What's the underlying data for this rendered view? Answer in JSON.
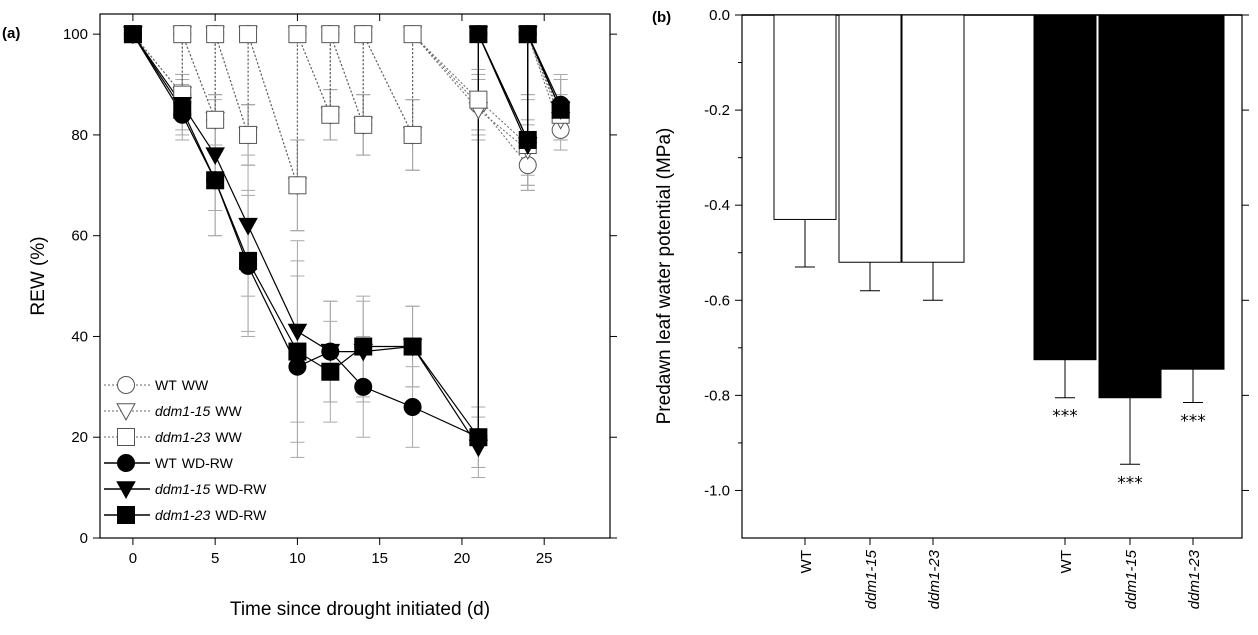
{
  "colors": {
    "open": "#ffffff",
    "filled": "#000000",
    "errorbar": "#a8a8a8",
    "axis": "#000000"
  },
  "chart_data": [
    {
      "panel_label": "(a)",
      "type": "line",
      "xlabel": "Time since drought initiated (d)",
      "ylabel": "REW (%)",
      "xlim": [
        -2,
        29
      ],
      "ylim": [
        0,
        104
      ],
      "xticks": [
        0,
        5,
        10,
        15,
        20,
        25
      ],
      "yticks": [
        0,
        20,
        40,
        60,
        80,
        100
      ],
      "legend_position": "lower-left",
      "series": [
        {
          "genotype": "WT",
          "treatment": "WW",
          "marker": "circle-open",
          "line": "dotted",
          "x": [
            0,
            3,
            5,
            7,
            10,
            12,
            14,
            17,
            21,
            24,
            26
          ],
          "y": [
            100,
            88,
            83,
            80,
            70,
            84,
            82,
            80,
            86,
            74,
            81
          ],
          "err": [
            0,
            4,
            5,
            6,
            9,
            5,
            6,
            7,
            6,
            5,
            4
          ]
        },
        {
          "genotype": "ddm1-15",
          "treatment": "WW",
          "marker": "triangle-open",
          "line": "dotted",
          "x": [
            0,
            3,
            5,
            7,
            10,
            12,
            14,
            17,
            21,
            24,
            26
          ],
          "y": [
            100,
            88,
            83,
            80,
            70,
            84,
            82,
            80,
            85,
            77,
            83
          ],
          "err": [
            0,
            4,
            5,
            6,
            9,
            5,
            6,
            7,
            6,
            5,
            4
          ]
        },
        {
          "genotype": "ddm1-23",
          "treatment": "WW",
          "marker": "square-open",
          "line": "dotted",
          "x": [
            0,
            3,
            5,
            7,
            10,
            12,
            14,
            17,
            21,
            24,
            26
          ],
          "y": [
            100,
            88,
            83,
            80,
            70,
            84,
            82,
            80,
            87,
            78,
            84
          ],
          "err": [
            0,
            4,
            5,
            6,
            9,
            5,
            6,
            7,
            6,
            5,
            4
          ]
        },
        {
          "genotype": "WT",
          "treatment": "WD-RW",
          "marker": "circle-filled",
          "line": "solid",
          "x": [
            0,
            3,
            5,
            7,
            10,
            12,
            14,
            17,
            21,
            24,
            26
          ],
          "y": [
            100,
            84,
            71,
            54,
            34,
            37,
            30,
            26,
            20,
            79,
            86
          ],
          "err": [
            0,
            5,
            11,
            14,
            18,
            10,
            10,
            8,
            6,
            9,
            6
          ]
        },
        {
          "genotype": "ddm1-15",
          "treatment": "WD-RW",
          "marker": "triangle-filled",
          "line": "solid",
          "x": [
            0,
            3,
            5,
            7,
            10,
            12,
            14,
            17,
            21,
            24,
            26
          ],
          "y": [
            100,
            86,
            76,
            62,
            41,
            37,
            37,
            38,
            18,
            78,
            85
          ],
          "err": [
            0,
            5,
            11,
            14,
            18,
            10,
            10,
            8,
            6,
            9,
            6
          ]
        },
        {
          "genotype": "ddm1-23",
          "treatment": "WD-RW",
          "marker": "square-filled",
          "line": "solid",
          "x": [
            0,
            3,
            5,
            7,
            10,
            12,
            14,
            17,
            21,
            24,
            26
          ],
          "y": [
            100,
            85,
            71,
            55,
            37,
            33,
            38,
            38,
            20,
            79,
            85
          ],
          "err": [
            0,
            5,
            11,
            14,
            18,
            10,
            10,
            8,
            6,
            9,
            6
          ]
        }
      ],
      "rewater": [
        {
          "x_from": 3,
          "x_to": 3,
          "to_value": 100,
          "group": "WW"
        },
        {
          "x_from": 5,
          "x_to": 5,
          "to_value": 100,
          "group": "WW"
        },
        {
          "x_from": 7,
          "x_to": 7,
          "to_value": 100,
          "group": "WW"
        },
        {
          "x_from": 10,
          "x_to": 10,
          "to_value": 100,
          "group": "WW"
        },
        {
          "x_from": 12,
          "x_to": 12,
          "to_value": 100,
          "group": "WW"
        },
        {
          "x_from": 14,
          "x_to": 14,
          "to_value": 100,
          "group": "WW"
        },
        {
          "x_from": 17,
          "x_to": 17,
          "to_value": 100,
          "group": "WW"
        },
        {
          "x_from": 21,
          "x_to": 21,
          "to_value": 100,
          "group": "WD-RW"
        },
        {
          "x_from": 24,
          "x_to": 24,
          "to_value": 100,
          "group": "all"
        }
      ],
      "legend": [
        {
          "genotype": "WT",
          "treatment": "WW",
          "marker": "circle-open"
        },
        {
          "genotype": "ddm1-15",
          "treatment": "WW",
          "marker": "triangle-open"
        },
        {
          "genotype": "ddm1-23",
          "treatment": "WW",
          "marker": "square-open"
        },
        {
          "genotype": "WT",
          "treatment": "WD-RW",
          "marker": "circle-filled"
        },
        {
          "genotype": "ddm1-15",
          "treatment": "WD-RW",
          "marker": "triangle-filled"
        },
        {
          "genotype": "ddm1-23",
          "treatment": "WD-RW",
          "marker": "square-filled"
        }
      ]
    },
    {
      "panel_label": "(b)",
      "type": "bar",
      "ylabel": "Predawn leaf water potential (MPa)",
      "ylim": [
        -1.1,
        0.0
      ],
      "yticks": [
        "0.0",
        "-0.2",
        "-0.4",
        "-0.6",
        "-0.8",
        "-1.0"
      ],
      "bars": [
        {
          "category": "WT",
          "value": -0.43,
          "err": 0.1,
          "fill": "open",
          "sig": ""
        },
        {
          "category": "ddm1-15",
          "value": -0.52,
          "err": 0.06,
          "fill": "open",
          "sig": ""
        },
        {
          "category": "ddm1-23",
          "value": -0.52,
          "err": 0.08,
          "fill": "open",
          "sig": ""
        },
        {
          "category": "WT",
          "value": -0.725,
          "err": 0.08,
          "fill": "filled",
          "sig": "***"
        },
        {
          "category": "ddm1-15",
          "value": -0.805,
          "err": 0.14,
          "fill": "filled",
          "sig": "***"
        },
        {
          "category": "ddm1-23",
          "value": -0.745,
          "err": 0.07,
          "fill": "filled",
          "sig": "***"
        }
      ]
    }
  ]
}
